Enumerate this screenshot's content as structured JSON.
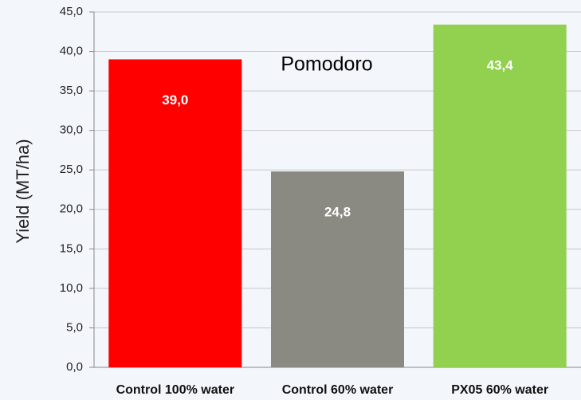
{
  "chart_data": {
    "type": "bar",
    "title": "Pomodoro",
    "y_label": "Yield (MT/ha)",
    "categories": [
      "Control 100% water",
      "Control 60% water",
      "PX05 60% water"
    ],
    "values": [
      39.0,
      24.8,
      43.4
    ],
    "value_labels": [
      "39,0",
      "24,8",
      "43,4"
    ],
    "colors": [
      "#ff0000",
      "#8a8a82",
      "#92d050"
    ],
    "ylim": [
      0,
      45
    ],
    "yticks": [
      {
        "value": 0,
        "label": "0,0"
      },
      {
        "value": 5,
        "label": "5,0"
      },
      {
        "value": 10,
        "label": "10,0"
      },
      {
        "value": 15,
        "label": "15,0"
      },
      {
        "value": 20,
        "label": "20,0"
      },
      {
        "value": 25,
        "label": "25,0"
      },
      {
        "value": 30,
        "label": "30,0"
      },
      {
        "value": 35,
        "label": "35,0"
      },
      {
        "value": 40,
        "label": "40,0"
      },
      {
        "value": 45,
        "label": "45,0"
      }
    ],
    "grid": true
  }
}
